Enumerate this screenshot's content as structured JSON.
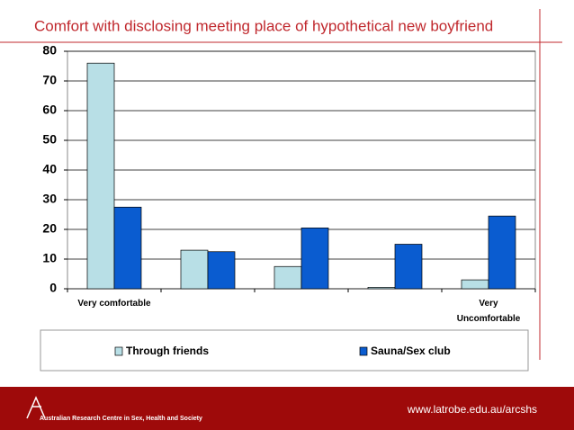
{
  "chart_data": {
    "type": "bar",
    "title": "Comfort with disclosing meeting place of hypothetical new boyfriend",
    "categories": [
      "Very comfortable",
      null,
      null,
      null,
      "Very Uncomfortable"
    ],
    "series": [
      {
        "name": "Through friends",
        "color": "#b8dfe6",
        "values": [
          76,
          13,
          7.5,
          0.5,
          3
        ]
      },
      {
        "name": "Sauna/Sex club",
        "color": "#0a5cd0",
        "values": [
          27.5,
          12.5,
          20.5,
          15,
          24.5
        ]
      }
    ],
    "ylim": [
      0,
      80
    ],
    "yticks": [
      0,
      10,
      20,
      30,
      40,
      50,
      60,
      70,
      80
    ],
    "grid": true,
    "legend": "bottom"
  },
  "footer": {
    "url": "www.latrobe.edu.au/arcshs",
    "org": "Australian Research Centre in Sex, Health and Society"
  }
}
